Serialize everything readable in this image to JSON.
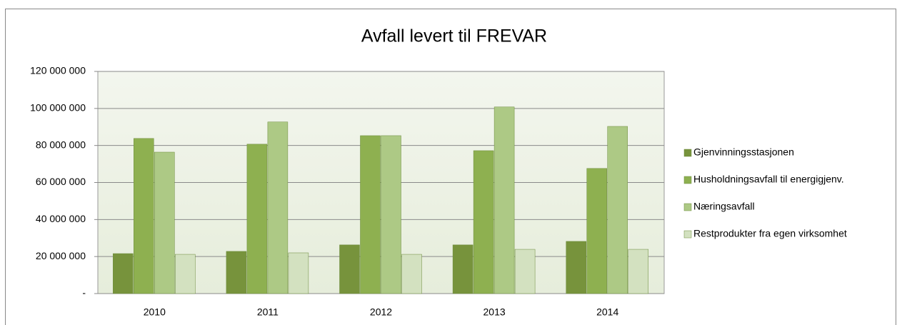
{
  "chart_data": {
    "type": "bar",
    "title": "Avfall levert til FREVAR",
    "categories": [
      "2010",
      "2011",
      "2012",
      "2013",
      "2014"
    ],
    "series": [
      {
        "name": "Gjenvinningsstasjonen",
        "color": "#77933c",
        "values": [
          21600000,
          22800000,
          26300000,
          26300000,
          28200000
        ]
      },
      {
        "name": "Husholdningsavfall til energigjenv.",
        "color": "#8eb050",
        "values": [
          83800000,
          80700000,
          85300000,
          77200000,
          67600000
        ]
      },
      {
        "name": "Næringsavfall",
        "color": "#adc985",
        "values": [
          76400000,
          92700000,
          85300000,
          100800000,
          90300000
        ]
      },
      {
        "name": "Restprodukter fra egen virksomhet",
        "color": "#d3e1c0",
        "values": [
          21200000,
          22000000,
          21200000,
          23900000,
          23900000
        ]
      }
    ],
    "ylim": [
      0,
      120000000
    ],
    "yticks": [
      {
        "value": 0,
        "label": "-"
      },
      {
        "value": 20000000,
        "label": "20 000 000"
      },
      {
        "value": 40000000,
        "label": "40 000 000"
      },
      {
        "value": 60000000,
        "label": "60 000 000"
      },
      {
        "value": 80000000,
        "label": "80 000 000"
      },
      {
        "value": 100000000,
        "label": "100 000 000"
      },
      {
        "value": 120000000,
        "label": "120 000 000"
      }
    ],
    "grid": true,
    "legend": "right"
  }
}
